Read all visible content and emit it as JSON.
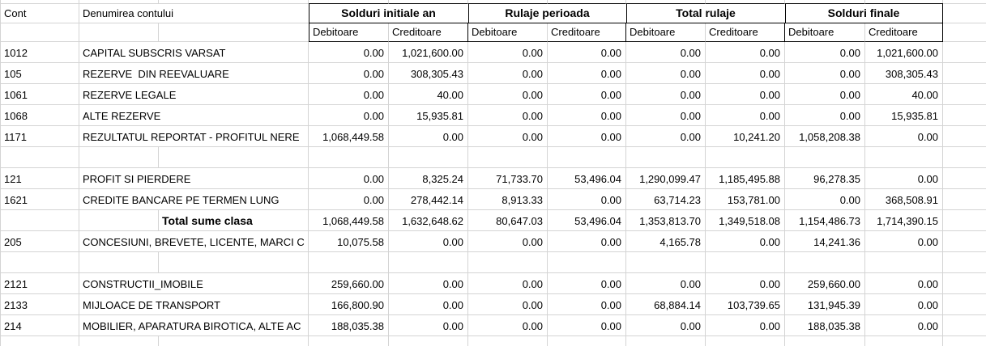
{
  "table": {
    "corner": {
      "cont": "Cont",
      "name": "Denumirea contului"
    },
    "groups": [
      "Solduri initiale an",
      "Rulaje perioada",
      "Total rulaje",
      "Solduri finale"
    ],
    "sub_headers": [
      "Debitoare",
      "Creditoare",
      "Debitoare",
      "Creditoare",
      "Debitoare",
      "Creditoare",
      "Debitoare",
      "Creditoare"
    ],
    "rows": [
      {
        "cont": "1012",
        "name": "CAPITAL SUBSCRIS VARSAT",
        "values": [
          "0.00",
          "1,021,600.00",
          "0.00",
          "0.00",
          "0.00",
          "0.00",
          "0.00",
          "1,021,600.00"
        ]
      },
      {
        "cont": "105",
        "name": "REZERVE  DIN REEVALUARE",
        "values": [
          "0.00",
          "308,305.43",
          "0.00",
          "0.00",
          "0.00",
          "0.00",
          "0.00",
          "308,305.43"
        ]
      },
      {
        "cont": "1061",
        "name": "REZERVE LEGALE",
        "values": [
          "0.00",
          "40.00",
          "0.00",
          "0.00",
          "0.00",
          "0.00",
          "0.00",
          "40.00"
        ]
      },
      {
        "cont": "1068",
        "name": "ALTE REZERVE",
        "values": [
          "0.00",
          "15,935.81",
          "0.00",
          "0.00",
          "0.00",
          "0.00",
          "0.00",
          "15,935.81"
        ]
      },
      {
        "cont": "1171",
        "name": "REZULTATUL REPORTAT - PROFITUL NERE",
        "values": [
          "1,068,449.58",
          "0.00",
          "0.00",
          "0.00",
          "0.00",
          "10,241.20",
          "1,058,208.38",
          "0.00"
        ]
      },
      {
        "type": "empty"
      },
      {
        "cont": "121",
        "name": "PROFIT SI PIERDERE",
        "values": [
          "0.00",
          "8,325.24",
          "71,733.70",
          "53,496.04",
          "1,290,099.47",
          "1,185,495.88",
          "96,278.35",
          "0.00"
        ]
      },
      {
        "cont": "1621",
        "name": "CREDITE BANCARE PE TERMEN LUNG",
        "values": [
          "0.00",
          "278,442.14",
          "8,913.33",
          "0.00",
          "63,714.23",
          "153,781.00",
          "0.00",
          "368,508.91"
        ]
      },
      {
        "type": "total",
        "label": "Total sume clasa",
        "values": [
          "1,068,449.58",
          "1,632,648.62",
          "80,647.03",
          "53,496.04",
          "1,353,813.70",
          "1,349,518.08",
          "1,154,486.73",
          "1,714,390.15"
        ]
      },
      {
        "cont": "205",
        "name": "CONCESIUNI, BREVETE, LICENTE, MARCI C",
        "values": [
          "10,075.58",
          "0.00",
          "0.00",
          "0.00",
          "4,165.78",
          "0.00",
          "14,241.36",
          "0.00"
        ]
      },
      {
        "type": "empty"
      },
      {
        "cont": "2121",
        "name": "CONSTRUCTII_IMOBILE",
        "values": [
          "259,660.00",
          "0.00",
          "0.00",
          "0.00",
          "0.00",
          "0.00",
          "259,660.00",
          "0.00"
        ]
      },
      {
        "cont": "2133",
        "name": "MIJLOACE DE TRANSPORT",
        "values": [
          "166,800.90",
          "0.00",
          "0.00",
          "0.00",
          "68,884.14",
          "103,739.65",
          "131,945.39",
          "0.00"
        ]
      },
      {
        "cont": "214",
        "name": "MOBILIER, APARATURA BIROTICA, ALTE AC",
        "values": [
          "188,035.38",
          "0.00",
          "0.00",
          "0.00",
          "0.00",
          "0.00",
          "188,035.38",
          "0.00"
        ]
      },
      {
        "type": "partial"
      }
    ],
    "colors": {
      "grid_line": "#d4d4d4",
      "header_border": "#000000",
      "text": "#000000",
      "background": "#ffffff"
    }
  }
}
